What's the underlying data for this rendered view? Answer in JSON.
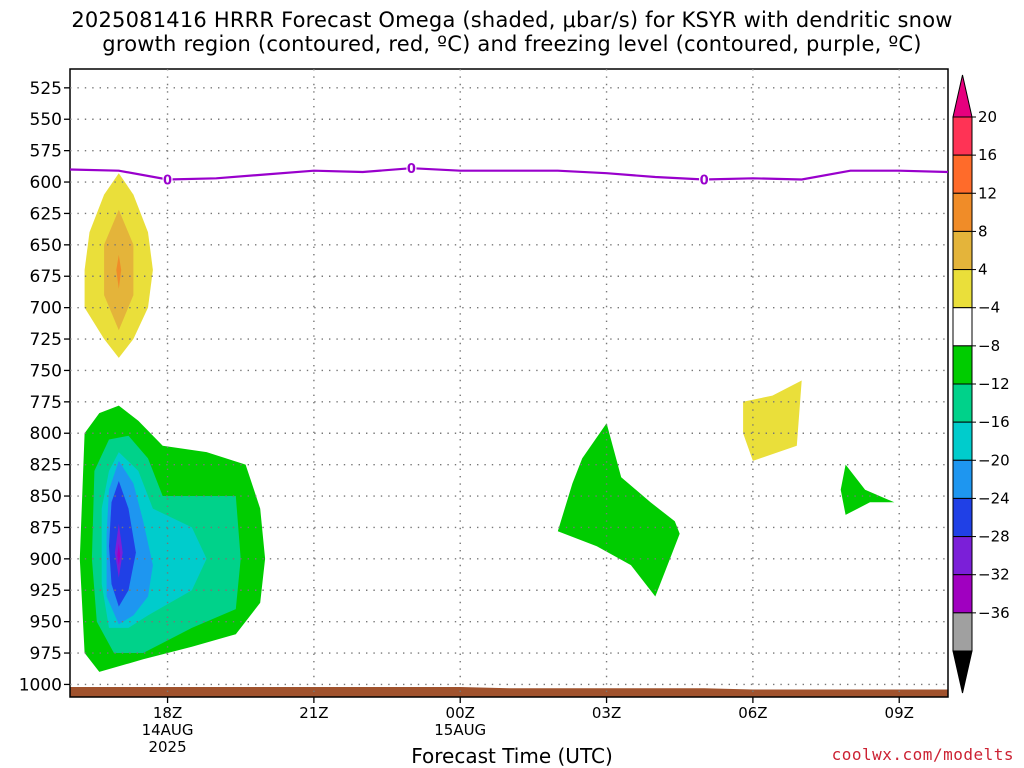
{
  "chart_data": {
    "type": "heatmap",
    "title_line1": "2025081416 HRRR Forecast Omega (shaded, μbar/s) for KSYR with dendritic snow",
    "title_line2": "growth region (contoured, red, ºC) and freezing level (contoured, purple, ºC)",
    "xlabel": "Forecast Time (UTC)",
    "credit": "coolwx.com/modelts",
    "x_ticks": [
      {
        "hour": 18,
        "label": "18Z",
        "sub1": "14AUG",
        "sub2": "2025"
      },
      {
        "hour": 21,
        "label": "21Z",
        "sub1": "",
        "sub2": ""
      },
      {
        "hour": 24,
        "label": "00Z",
        "sub1": "15AUG",
        "sub2": ""
      },
      {
        "hour": 27,
        "label": "03Z",
        "sub1": "",
        "sub2": ""
      },
      {
        "hour": 30,
        "label": "06Z",
        "sub1": "",
        "sub2": ""
      },
      {
        "hour": 33,
        "label": "09Z",
        "sub1": "",
        "sub2": ""
      }
    ],
    "xlim_hours": [
      16,
      34
    ],
    "ylim_mb": [
      1010,
      510
    ],
    "y_ticks": [
      525,
      550,
      575,
      600,
      625,
      650,
      675,
      700,
      725,
      750,
      775,
      800,
      825,
      850,
      875,
      900,
      925,
      950,
      975,
      1000
    ],
    "colorbar": {
      "labels": [
        "20",
        "16",
        "12",
        "8",
        "4",
        "−4",
        "−8",
        "−12",
        "−16",
        "−20",
        "−24",
        "−28",
        "−32",
        "−36"
      ],
      "colors": [
        "#ff3355",
        "#ff6b2a",
        "#f08c28",
        "#e4b43a",
        "#eadf3a",
        "#ffffff",
        "#00cc00",
        "#00d28a",
        "#00cccc",
        "#1e96f0",
        "#2040e6",
        "#7b1fd8",
        "#a000c0",
        "#a0a0a0"
      ],
      "top_arrow_color": "#e6007e",
      "bottom_arrow_color": "#000000"
    },
    "freezing_level": {
      "label": "0",
      "color": "#9900cc",
      "points": [
        [
          16,
          590
        ],
        [
          17,
          591
        ],
        [
          18,
          598
        ],
        [
          19,
          597
        ],
        [
          20,
          594
        ],
        [
          21,
          591
        ],
        [
          22,
          592
        ],
        [
          23,
          589
        ],
        [
          24,
          591
        ],
        [
          25,
          591
        ],
        [
          26,
          591
        ],
        [
          27,
          593
        ],
        [
          28,
          596
        ],
        [
          29,
          598
        ],
        [
          30,
          597
        ],
        [
          31,
          598
        ],
        [
          32,
          591
        ],
        [
          33,
          591
        ],
        [
          34,
          592
        ]
      ],
      "label_hours": [
        18,
        23,
        29
      ]
    },
    "terrain": {
      "color": "#a0522d",
      "points": [
        [
          16,
          1002
        ],
        [
          24,
          1002
        ],
        [
          25,
          1003
        ],
        [
          29,
          1003
        ],
        [
          30,
          1004
        ],
        [
          34,
          1004
        ]
      ]
    },
    "omega_regions": [
      {
        "color": "#eadf3a",
        "points": [
          [
            17.0,
            593
          ],
          [
            17.3,
            610
          ],
          [
            17.6,
            640
          ],
          [
            17.7,
            670
          ],
          [
            17.6,
            700
          ],
          [
            17.3,
            725
          ],
          [
            17.0,
            740
          ],
          [
            16.7,
            725
          ],
          [
            16.3,
            700
          ],
          [
            16.3,
            670
          ],
          [
            16.4,
            640
          ],
          [
            16.7,
            610
          ]
        ]
      },
      {
        "color": "#e4b43a",
        "points": [
          [
            17.0,
            622
          ],
          [
            17.3,
            650
          ],
          [
            17.3,
            690
          ],
          [
            17.0,
            718
          ],
          [
            16.7,
            690
          ],
          [
            16.7,
            650
          ]
        ]
      },
      {
        "color": "#f08c28",
        "points": [
          [
            17.0,
            658
          ],
          [
            17.05,
            670
          ],
          [
            17.0,
            685
          ],
          [
            16.95,
            670
          ]
        ]
      },
      {
        "color": "#00cc00",
        "points": [
          [
            16.3,
            800
          ],
          [
            16.6,
            784
          ],
          [
            17.0,
            778
          ],
          [
            17.4,
            790
          ],
          [
            17.9,
            810
          ],
          [
            18.8,
            815
          ],
          [
            19.6,
            825
          ],
          [
            19.9,
            860
          ],
          [
            20.0,
            900
          ],
          [
            19.9,
            935
          ],
          [
            19.4,
            960
          ],
          [
            18.5,
            970
          ],
          [
            17.5,
            980
          ],
          [
            16.6,
            990
          ],
          [
            16.3,
            975
          ],
          [
            16.2,
            900
          ]
        ]
      },
      {
        "color": "#00d28a",
        "points": [
          [
            16.5,
            830
          ],
          [
            16.8,
            805
          ],
          [
            17.2,
            802
          ],
          [
            17.6,
            820
          ],
          [
            17.9,
            850
          ],
          [
            19.4,
            850
          ],
          [
            19.5,
            900
          ],
          [
            19.4,
            940
          ],
          [
            18.5,
            955
          ],
          [
            17.5,
            975
          ],
          [
            16.9,
            975
          ],
          [
            16.55,
            950
          ],
          [
            16.45,
            900
          ]
        ]
      },
      {
        "color": "#00cccc",
        "points": [
          [
            17.0,
            815
          ],
          [
            17.4,
            830
          ],
          [
            17.7,
            860
          ],
          [
            18.5,
            875
          ],
          [
            18.8,
            900
          ],
          [
            18.5,
            925
          ],
          [
            17.6,
            945
          ],
          [
            17.2,
            955
          ],
          [
            16.8,
            955
          ],
          [
            16.65,
            920
          ],
          [
            16.65,
            860
          ],
          [
            16.8,
            830
          ]
        ]
      },
      {
        "color": "#1e96f0",
        "points": [
          [
            17.0,
            822
          ],
          [
            17.3,
            840
          ],
          [
            17.5,
            870
          ],
          [
            17.7,
            905
          ],
          [
            17.6,
            930
          ],
          [
            17.3,
            945
          ],
          [
            17.0,
            952
          ],
          [
            16.75,
            930
          ],
          [
            16.75,
            880
          ],
          [
            16.8,
            845
          ]
        ]
      },
      {
        "color": "#2040e6",
        "points": [
          [
            17.0,
            838
          ],
          [
            17.2,
            860
          ],
          [
            17.35,
            895
          ],
          [
            17.2,
            925
          ],
          [
            17.0,
            938
          ],
          [
            16.85,
            920
          ],
          [
            16.8,
            890
          ],
          [
            16.85,
            855
          ]
        ]
      },
      {
        "color": "#7b1fd8",
        "points": [
          [
            17.0,
            872
          ],
          [
            17.08,
            895
          ],
          [
            17.0,
            915
          ],
          [
            16.92,
            895
          ]
        ]
      },
      {
        "color": "#a000c0",
        "points": [
          [
            17.0,
            888
          ],
          [
            17.03,
            897
          ],
          [
            17.0,
            905
          ],
          [
            16.97,
            897
          ]
        ]
      },
      {
        "color": "#00cc00",
        "points": [
          [
            27.0,
            792
          ],
          [
            27.3,
            835
          ],
          [
            27.9,
            855
          ],
          [
            28.4,
            870
          ],
          [
            28.5,
            880
          ],
          [
            28.2,
            910
          ],
          [
            28.0,
            930
          ],
          [
            27.5,
            905
          ],
          [
            26.8,
            890
          ],
          [
            26.0,
            878
          ],
          [
            26.3,
            840
          ],
          [
            26.5,
            820
          ]
        ]
      },
      {
        "color": "#eadf3a",
        "points": [
          [
            29.8,
            775
          ],
          [
            30.4,
            770
          ],
          [
            31.0,
            758
          ],
          [
            30.9,
            810
          ],
          [
            30.0,
            822
          ],
          [
            29.8,
            800
          ]
        ]
      },
      {
        "color": "#00cc00",
        "points": [
          [
            31.9,
            825
          ],
          [
            32.3,
            845
          ],
          [
            32.9,
            855
          ],
          [
            32.4,
            855
          ],
          [
            31.9,
            865
          ],
          [
            31.8,
            845
          ]
        ]
      }
    ]
  }
}
